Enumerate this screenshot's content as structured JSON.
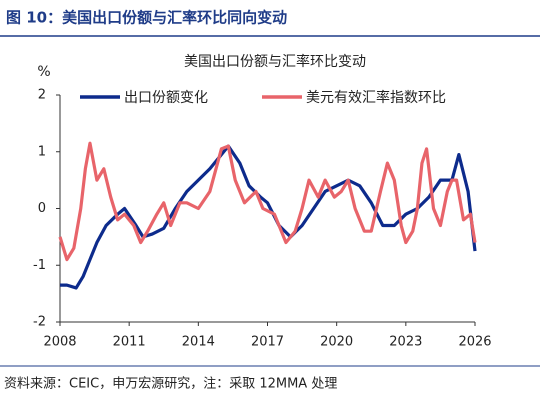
{
  "header": "图 10：美国出口份额与汇率环比同向变动",
  "source": "资料来源：CEIC，申万宏源研究，注：采取 12MMA 处理",
  "chart_data": {
    "type": "line",
    "title": "美国出口份额与汇率环比变动",
    "y_label": "%",
    "xlim": [
      2008,
      2026
    ],
    "xticks": [
      2008,
      2011,
      2014,
      2017,
      2020,
      2023,
      2026
    ],
    "ylim": [
      -2,
      2
    ],
    "yticks": [
      -2,
      -1,
      0,
      1,
      2
    ],
    "legend": "top",
    "series": [
      {
        "name": "出口份额变化",
        "color": "#0d2b8c",
        "x": [
          2008,
          2008.3,
          2008.7,
          2009,
          2009.3,
          2009.6,
          2010,
          2010.5,
          2010.8,
          2011.3,
          2011.6,
          2012,
          2012.5,
          2013,
          2013.5,
          2014,
          2014.5,
          2015,
          2015.3,
          2015.8,
          2016.2,
          2016.7,
          2017,
          2017.5,
          2018,
          2018.5,
          2019,
          2019.5,
          2020,
          2020.5,
          2021,
          2021.5,
          2022,
          2022.5,
          2023,
          2023.5,
          2024,
          2024.5,
          2025,
          2025.3,
          2025.7,
          2026
        ],
        "values": [
          -1.35,
          -1.35,
          -1.4,
          -1.2,
          -0.9,
          -0.6,
          -0.3,
          -0.1,
          0,
          -0.3,
          -0.5,
          -0.45,
          -0.35,
          0,
          0.3,
          0.5,
          0.7,
          0.95,
          1.1,
          0.8,
          0.4,
          0.2,
          0.1,
          -0.3,
          -0.5,
          -0.3,
          0,
          0.3,
          0.4,
          0.5,
          0.4,
          0.1,
          -0.3,
          -0.3,
          -0.1,
          0,
          0.2,
          0.5,
          0.5,
          0.95,
          0.3,
          -0.75
        ]
      },
      {
        "name": "美元有效汇率指数环比",
        "color": "#e8646a",
        "x": [
          2008,
          2008.3,
          2008.6,
          2008.9,
          2009.1,
          2009.3,
          2009.6,
          2009.9,
          2010.2,
          2010.5,
          2010.8,
          2011.2,
          2011.5,
          2011.8,
          2012.2,
          2012.5,
          2012.8,
          2013.2,
          2013.5,
          2014,
          2014.5,
          2015,
          2015.3,
          2015.6,
          2016,
          2016.5,
          2016.8,
          2017.3,
          2017.8,
          2018.2,
          2018.5,
          2018.8,
          2019.2,
          2019.5,
          2019.9,
          2020.2,
          2020.5,
          2020.8,
          2021.2,
          2021.5,
          2021.9,
          2022.2,
          2022.5,
          2022.8,
          2023,
          2023.3,
          2023.5,
          2023.7,
          2023.9,
          2024.2,
          2024.5,
          2024.8,
          2025,
          2025.2,
          2025.5,
          2025.8,
          2026
        ],
        "values": [
          -0.5,
          -0.9,
          -0.7,
          0,
          0.7,
          1.15,
          0.5,
          0.7,
          0.2,
          -0.2,
          -0.1,
          -0.3,
          -0.6,
          -0.4,
          -0.1,
          0.1,
          -0.3,
          0.1,
          0.1,
          0,
          0.3,
          1.05,
          1.1,
          0.5,
          0.1,
          0.3,
          0,
          -0.1,
          -0.6,
          -0.4,
          0,
          0.5,
          0.2,
          0.5,
          0.2,
          0.3,
          0.5,
          0,
          -0.4,
          -0.4,
          0.3,
          0.8,
          0.5,
          -0.3,
          -0.6,
          -0.4,
          0,
          0.8,
          1.05,
          0,
          -0.3,
          0.3,
          0.5,
          0.5,
          -0.2,
          -0.1,
          -0.6
        ]
      }
    ]
  }
}
